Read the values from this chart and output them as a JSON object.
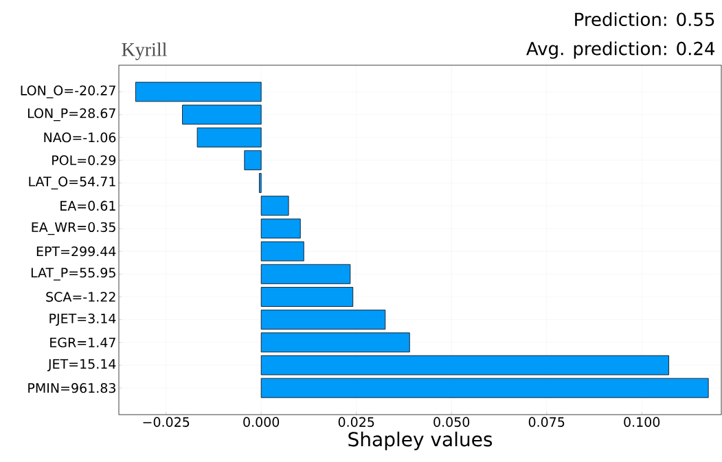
{
  "chart_data": {
    "type": "bar",
    "orientation": "horizontal",
    "title": "Kyrill",
    "xlabel": "Shapley values",
    "annotations": [
      "Prediction: 0.55",
      "Avg. prediction: 0.24"
    ],
    "categories": [
      "LON_O=-20.27",
      "LON_P=28.67",
      "NAO=-1.06",
      "POL=0.29",
      "LAT_O=54.71",
      "EA=0.61",
      "EA_WR=0.35",
      "EPT=299.44",
      "LAT_P=55.95",
      "SCA=-1.22",
      "PJET=3.14",
      "EGR=1.47",
      "JET=15.14",
      "PMIN=961.83"
    ],
    "values": [
      -0.033,
      -0.0207,
      -0.0168,
      -0.0044,
      -0.0005,
      0.0072,
      0.0103,
      0.0112,
      0.0234,
      0.0241,
      0.0326,
      0.039,
      0.1071,
      0.1175
    ],
    "color": "#009af9",
    "xlim": [
      -0.0374,
      0.1209
    ],
    "xticks": [
      {
        "value": -0.025,
        "label": "−0.025"
      },
      {
        "value": 0,
        "label": "0.000"
      },
      {
        "value": 0.025,
        "label": "0.025"
      },
      {
        "value": 0.05,
        "label": "0.050"
      },
      {
        "value": 0.075,
        "label": "0.075"
      },
      {
        "value": 0.1,
        "label": "0.100"
      }
    ],
    "grid": true
  }
}
